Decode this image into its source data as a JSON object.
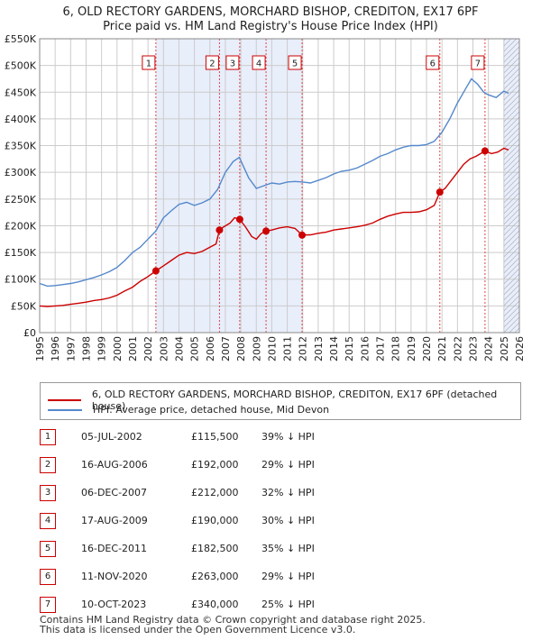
{
  "title": "6, OLD RECTORY GARDENS, MORCHARD BISHOP, CREDITON, EX17 6PF",
  "subtitle": "Price paid vs. HM Land Registry's House Price Index (HPI)",
  "colors": {
    "property": "#cc0000",
    "hpi": "#5588cc",
    "shade": "#e8eefa",
    "grid": "#cccccc"
  },
  "legend": {
    "property_label": "6, OLD RECTORY GARDENS, MORCHARD BISHOP, CREDITON, EX17 6PF (detached house)",
    "hpi_label": "HPI: Average price, detached house, Mid Devon"
  },
  "sales_table": [
    {
      "num": "1",
      "date": "05-JUL-2002",
      "price": "£115,500",
      "hpi": "39% ↓ HPI"
    },
    {
      "num": "2",
      "date": "16-AUG-2006",
      "price": "£192,000",
      "hpi": "29% ↓ HPI"
    },
    {
      "num": "3",
      "date": "06-DEC-2007",
      "price": "£212,000",
      "hpi": "32% ↓ HPI"
    },
    {
      "num": "4",
      "date": "17-AUG-2009",
      "price": "£190,000",
      "hpi": "30% ↓ HPI"
    },
    {
      "num": "5",
      "date": "16-DEC-2011",
      "price": "£182,500",
      "hpi": "35% ↓ HPI"
    },
    {
      "num": "6",
      "date": "11-NOV-2020",
      "price": "£263,000",
      "hpi": "29% ↓ HPI"
    },
    {
      "num": "7",
      "date": "10-OCT-2023",
      "price": "£340,000",
      "hpi": "25% ↓ HPI"
    }
  ],
  "footer": {
    "line1": "Contains HM Land Registry data © Crown copyright and database right 2025.",
    "line2": "This data is licensed under the Open Government Licence v3.0."
  },
  "chart_data": {
    "type": "line",
    "x_range": [
      1995,
      2026
    ],
    "ylim": [
      0,
      550000
    ],
    "y_ticks": [
      0,
      50000,
      100000,
      150000,
      200000,
      250000,
      300000,
      350000,
      400000,
      450000,
      500000,
      550000
    ],
    "y_tick_labels": [
      "£0",
      "£50K",
      "£100K",
      "£150K",
      "£200K",
      "£250K",
      "£300K",
      "£350K",
      "£400K",
      "£450K",
      "£500K",
      "£550K"
    ],
    "x_ticks": [
      1995,
      1996,
      1997,
      1998,
      1999,
      2000,
      2001,
      2002,
      2003,
      2004,
      2005,
      2006,
      2007,
      2008,
      2009,
      2010,
      2011,
      2012,
      2013,
      2014,
      2015,
      2016,
      2017,
      2018,
      2019,
      2020,
      2021,
      2022,
      2023,
      2024,
      2025,
      2026
    ],
    "grid": true,
    "series": [
      {
        "name": "HPI: Average price, detached house, Mid Devon",
        "x": [
          1995.0,
          1995.5,
          1996.0,
          1996.5,
          1997.0,
          1997.5,
          1998.0,
          1998.5,
          1999.0,
          1999.5,
          2000.0,
          2000.5,
          2001.0,
          2001.5,
          2002.0,
          2002.5,
          2003.0,
          2003.5,
          2004.0,
          2004.5,
          2005.0,
          2005.5,
          2006.0,
          2006.5,
          2007.0,
          2007.5,
          2007.9,
          2008.5,
          2009.0,
          2009.5,
          2010.0,
          2010.5,
          2011.0,
          2011.5,
          2012.0,
          2012.5,
          2013.0,
          2013.5,
          2014.0,
          2014.5,
          2015.0,
          2015.5,
          2016.0,
          2016.5,
          2017.0,
          2017.5,
          2018.0,
          2018.5,
          2019.0,
          2019.5,
          2020.0,
          2020.5,
          2021.0,
          2021.5,
          2022.0,
          2022.5,
          2022.9,
          2023.3,
          2023.7,
          2024.0,
          2024.5,
          2025.0,
          2025.3
        ],
        "y": [
          92000,
          87000,
          88000,
          90000,
          92000,
          95000,
          99000,
          103000,
          108000,
          114000,
          122000,
          135000,
          150000,
          160000,
          175000,
          190000,
          215000,
          228000,
          240000,
          244000,
          238000,
          243000,
          250000,
          268000,
          300000,
          320000,
          328000,
          290000,
          270000,
          275000,
          280000,
          278000,
          282000,
          283000,
          282000,
          280000,
          285000,
          290000,
          297000,
          302000,
          304000,
          308000,
          315000,
          322000,
          330000,
          335000,
          342000,
          347000,
          350000,
          350000,
          352000,
          358000,
          375000,
          400000,
          430000,
          455000,
          475000,
          465000,
          450000,
          445000,
          440000,
          452000,
          448000
        ]
      },
      {
        "name": "6, OLD RECTORY GARDENS, MORCHARD BISHOP, CREDITON, EX17 6PF (detached house)",
        "x": [
          1995.0,
          1995.5,
          1996.0,
          1996.5,
          1997.0,
          1997.5,
          1998.0,
          1998.5,
          1999.0,
          1999.5,
          2000.0,
          2000.5,
          2001.0,
          2001.5,
          2002.0,
          2002.51,
          2003.0,
          2003.5,
          2004.0,
          2004.5,
          2005.0,
          2005.5,
          2006.0,
          2006.4,
          2006.62,
          2006.9,
          2007.3,
          2007.6,
          2007.93,
          2008.3,
          2008.7,
          2009.0,
          2009.3,
          2009.63,
          2010.0,
          2010.5,
          2011.0,
          2011.5,
          2011.96,
          2012.5,
          2013.0,
          2013.5,
          2014.0,
          2014.5,
          2015.0,
          2015.5,
          2016.0,
          2016.5,
          2017.0,
          2017.5,
          2018.0,
          2018.5,
          2019.0,
          2019.5,
          2020.0,
          2020.5,
          2020.86,
          2021.2,
          2021.6,
          2022.0,
          2022.4,
          2022.8,
          2023.2,
          2023.5,
          2023.78,
          2024.2,
          2024.6,
          2025.0,
          2025.3
        ],
        "y": [
          50000,
          49000,
          50000,
          51000,
          53000,
          55000,
          57000,
          60000,
          62000,
          65000,
          70000,
          78000,
          85000,
          96000,
          105000,
          115500,
          125000,
          135000,
          145000,
          150000,
          148000,
          152000,
          160000,
          166000,
          192000,
          198000,
          205000,
          215000,
          212000,
          198000,
          180000,
          175000,
          185000,
          190000,
          192000,
          196000,
          198000,
          195000,
          182500,
          183000,
          186000,
          188000,
          192000,
          194000,
          196000,
          198000,
          201000,
          205000,
          212000,
          218000,
          222000,
          225000,
          225000,
          226000,
          230000,
          238000,
          263000,
          270000,
          285000,
          300000,
          315000,
          325000,
          330000,
          335000,
          340000,
          335000,
          338000,
          345000,
          342000
        ]
      }
    ],
    "sales": [
      {
        "label": "1",
        "x": 2002.51,
        "y": 115500
      },
      {
        "label": "2",
        "x": 2006.62,
        "y": 192000
      },
      {
        "label": "3",
        "x": 2007.93,
        "y": 212000
      },
      {
        "label": "4",
        "x": 2009.63,
        "y": 190000
      },
      {
        "label": "5",
        "x": 2011.96,
        "y": 182500
      },
      {
        "label": "6",
        "x": 2020.86,
        "y": 263000
      },
      {
        "label": "7",
        "x": 2023.78,
        "y": 340000
      }
    ],
    "shaded_ranges": [
      [
        2002.51,
        2011.96
      ],
      [
        2025.0,
        2026.0
      ]
    ]
  }
}
